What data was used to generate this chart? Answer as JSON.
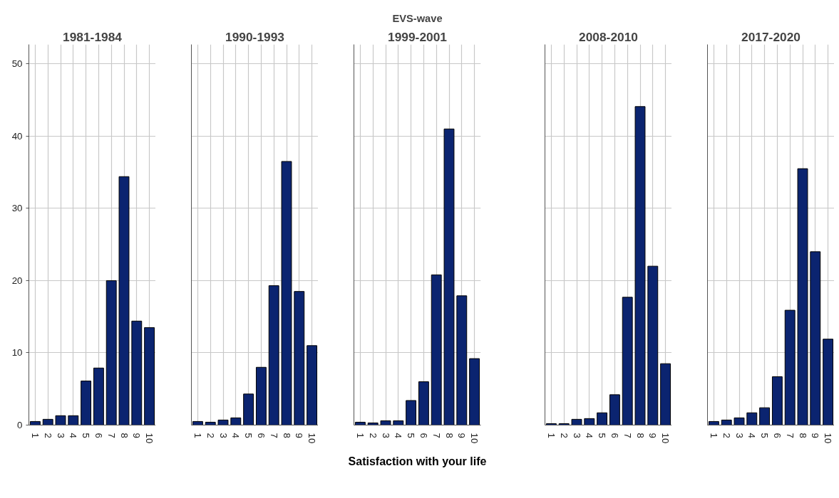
{
  "chart_data": [
    {
      "type": "bar",
      "title": "1981-1984",
      "categories": [
        "1",
        "2",
        "3",
        "4",
        "5",
        "6",
        "7",
        "8",
        "9",
        "10"
      ],
      "values": [
        0.5,
        0.8,
        1.3,
        1.3,
        6.1,
        7.9,
        20.0,
        34.4,
        14.4,
        13.5
      ],
      "color": "#0b2470",
      "ylim": [
        0,
        52.7
      ],
      "yticks": [
        0,
        10,
        20,
        30,
        40,
        50
      ],
      "grid": true
    },
    {
      "type": "bar",
      "title": "1990-1993",
      "categories": [
        "1",
        "2",
        "3",
        "4",
        "5",
        "6",
        "7",
        "8",
        "9",
        "10"
      ],
      "values": [
        0.5,
        0.4,
        0.7,
        1.0,
        4.3,
        8.0,
        19.3,
        36.5,
        18.5,
        11.0
      ],
      "color": "#0b2470",
      "ylim": [
        0,
        52.7
      ],
      "yticks": [
        0,
        10,
        20,
        30,
        40,
        50
      ],
      "grid": true,
      "tick_labels": "x"
    },
    {
      "type": "bar",
      "title": "1999-2001",
      "annotations": [
        "EVS-wave"
      ],
      "xlabel": "Satisfaction with your life",
      "categories": [
        "1",
        "2",
        "3",
        "4",
        "5",
        "6",
        "7",
        "8",
        "9",
        "10"
      ],
      "values": [
        0.4,
        0.3,
        0.6,
        0.6,
        3.4,
        6.0,
        20.8,
        41.0,
        17.9,
        9.2
      ],
      "color": "#0b2470",
      "ylim": [
        0,
        52.7
      ],
      "yticks": [
        0,
        10,
        20,
        30,
        40,
        50
      ],
      "grid": true,
      "tick_labels": "x"
    },
    {
      "type": "bar",
      "title": "2008-2010",
      "categories": [
        "1",
        "2",
        "3",
        "4",
        "5",
        "6",
        "7",
        "8",
        "9",
        "10"
      ],
      "values": [
        0.2,
        0.2,
        0.8,
        0.9,
        1.7,
        4.2,
        17.7,
        44.1,
        22.0,
        8.5
      ],
      "color": "#0b2470",
      "ylim": [
        0,
        52.7
      ],
      "yticks": [
        0,
        10,
        20,
        30,
        40,
        50
      ],
      "grid": true,
      "tick_labels": "x"
    },
    {
      "type": "bar",
      "title": "2017-2020",
      "categories": [
        "1",
        "2",
        "3",
        "4",
        "5",
        "6",
        "7",
        "8",
        "9",
        "10"
      ],
      "values": [
        0.5,
        0.7,
        1.0,
        1.7,
        2.4,
        6.7,
        15.9,
        35.5,
        24.0,
        11.9
      ],
      "color": "#0b2470",
      "ylim": [
        0,
        52.7
      ],
      "yticks": [
        0,
        10,
        20,
        30,
        40,
        50
      ],
      "grid": true,
      "tick_labels": "x"
    }
  ]
}
